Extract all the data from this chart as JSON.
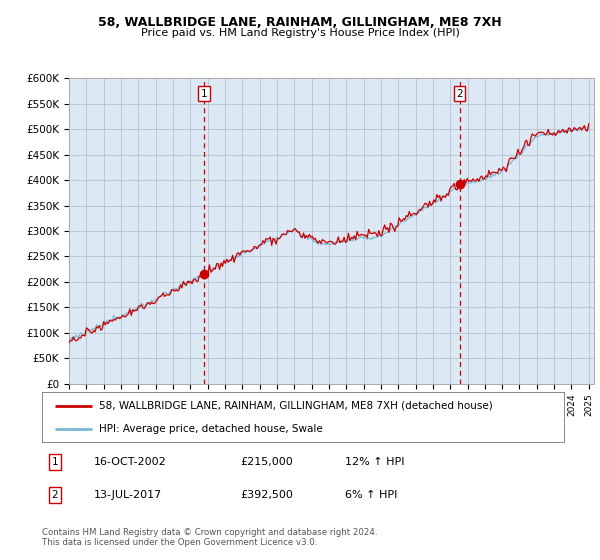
{
  "title": "58, WALLBRIDGE LANE, RAINHAM, GILLINGHAM, ME8 7XH",
  "subtitle": "Price paid vs. HM Land Registry's House Price Index (HPI)",
  "background_color": "#dce9f5",
  "plot_bg": "#dce9f5",
  "ylabel_ticks": [
    "£0",
    "£50K",
    "£100K",
    "£150K",
    "£200K",
    "£250K",
    "£300K",
    "£350K",
    "£400K",
    "£450K",
    "£500K",
    "£550K",
    "£600K"
  ],
  "ytick_values": [
    0,
    50000,
    100000,
    150000,
    200000,
    250000,
    300000,
    350000,
    400000,
    450000,
    500000,
    550000,
    600000
  ],
  "x_start_year": 1995,
  "x_end_year": 2025,
  "sale1_date": 2002.79,
  "sale1_price": 215000,
  "sale2_date": 2017.54,
  "sale2_price": 392500,
  "legend_line1": "58, WALLBRIDGE LANE, RAINHAM, GILLINGHAM, ME8 7XH (detached house)",
  "legend_line2": "HPI: Average price, detached house, Swale",
  "note1_label": "1",
  "note1_date": "16-OCT-2002",
  "note1_price": "£215,000",
  "note1_hpi": "12% ↑ HPI",
  "note2_label": "2",
  "note2_date": "13-JUL-2017",
  "note2_price": "£392,500",
  "note2_hpi": "6% ↑ HPI",
  "footer": "Contains HM Land Registry data © Crown copyright and database right 2024.\nThis data is licensed under the Open Government Licence v3.0.",
  "line_color_price": "#cc0000",
  "line_color_hpi": "#7ab8d4",
  "vline_color": "#cc0000",
  "marker_color": "#cc0000"
}
